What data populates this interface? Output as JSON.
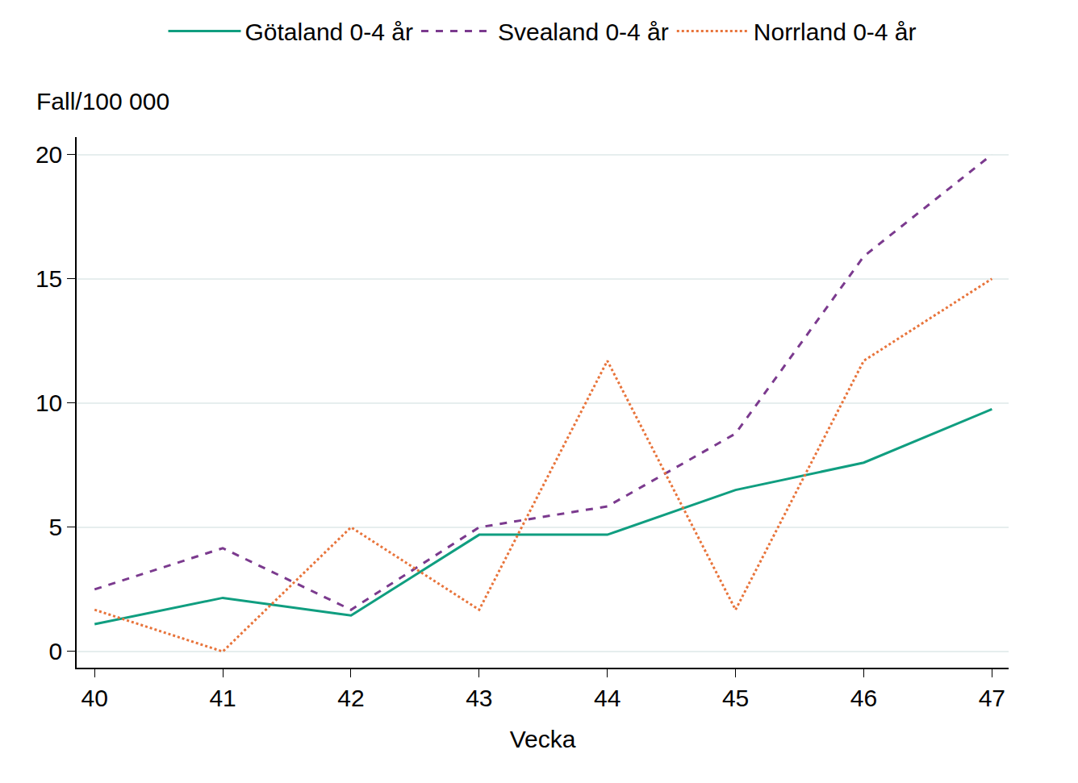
{
  "chart_data": {
    "type": "line",
    "x_label": "Vecka",
    "y_label": "Fall/100 000",
    "x": [
      40,
      41,
      42,
      43,
      44,
      45,
      46,
      47
    ],
    "xlim": [
      39.86,
      47.13
    ],
    "xticks": [
      40,
      41,
      42,
      43,
      44,
      45,
      46,
      47
    ],
    "ylim": [
      -0.65,
      20.7
    ],
    "yticks": [
      0,
      5,
      10,
      15,
      20
    ],
    "grid": true,
    "legend": "top",
    "series": [
      {
        "name": "Götaland 0-4 år",
        "color": "#109e80",
        "line_style": "solid",
        "values": [
          1.1,
          2.16,
          1.45,
          4.7,
          4.7,
          6.5,
          7.6,
          9.75
        ]
      },
      {
        "name": "Svealand 0-4 år",
        "color": "#7b3a8e",
        "line_style": "dash",
        "values": [
          2.5,
          4.16,
          1.68,
          5.0,
          5.84,
          8.77,
          15.9,
          20.0
        ]
      },
      {
        "name": "Norrland 0-4 år",
        "color": "#e8743b",
        "line_style": "dot",
        "values": [
          1.68,
          0,
          5.0,
          1.68,
          11.7,
          1.68,
          11.7,
          15.0
        ]
      }
    ]
  }
}
